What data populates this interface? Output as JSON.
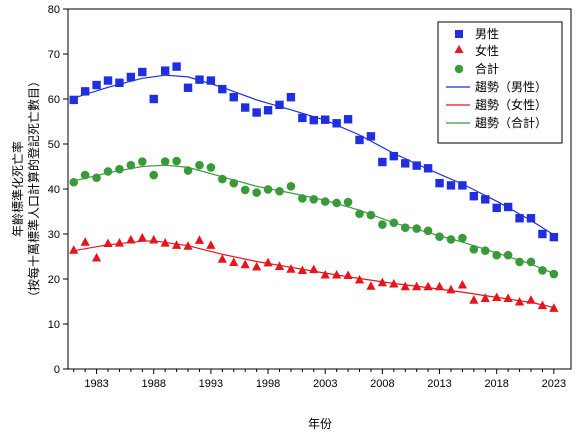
{
  "chart_data": {
    "type": "scatter",
    "xlabel": "年份",
    "ylabel": "年齡標準化死亡率",
    "ylabel2": "（按每十萬標準人口計算的登記死亡數目）",
    "xlim": [
      1981,
      2023
    ],
    "ylim": [
      0,
      80
    ],
    "x_ticks": [
      "1983",
      "1988",
      "1993",
      "1998",
      "2003",
      "2008",
      "2013",
      "2018",
      "2023"
    ],
    "y_ticks": [
      "0",
      "10",
      "20",
      "30",
      "40",
      "50",
      "60",
      "70",
      "80"
    ],
    "legend_position": "top-right",
    "series": [
      {
        "name": "男性",
        "marker": "square",
        "color": "#1f2fe0",
        "x": [
          1981,
          1982,
          1983,
          1984,
          1985,
          1986,
          1987,
          1988,
          1989,
          1990,
          1991,
          1992,
          1993,
          1994,
          1995,
          1996,
          1997,
          1998,
          1999,
          2000,
          2001,
          2002,
          2003,
          2004,
          2005,
          2006,
          2007,
          2008,
          2009,
          2010,
          2011,
          2012,
          2013,
          2014,
          2015,
          2016,
          2017,
          2018,
          2019,
          2020,
          2021,
          2022,
          2023
        ],
        "y": [
          59.8,
          61.7,
          63.1,
          64.1,
          63.6,
          64.9,
          66.0,
          60.0,
          66.3,
          67.2,
          62.5,
          64.3,
          64.1,
          62.2,
          60.4,
          58.1,
          57.0,
          57.5,
          58.7,
          60.4,
          55.8,
          55.3,
          55.4,
          54.6,
          55.5,
          50.9,
          51.7,
          46.0,
          47.3,
          45.7,
          45.2,
          44.6,
          41.3,
          40.8,
          40.8,
          38.4,
          37.7,
          35.8,
          36.0,
          33.5,
          33.5,
          30.0,
          29.3
        ]
      },
      {
        "name": "女性",
        "marker": "triangle",
        "color": "#e8141c",
        "x": [
          1981,
          1982,
          1983,
          1984,
          1985,
          1986,
          1987,
          1988,
          1989,
          1990,
          1991,
          1992,
          1993,
          1994,
          1995,
          1996,
          1997,
          1998,
          1999,
          2000,
          2001,
          2002,
          2003,
          2004,
          2005,
          2006,
          2007,
          2008,
          2009,
          2010,
          2011,
          2012,
          2013,
          2014,
          2015,
          2016,
          2017,
          2018,
          2019,
          2020,
          2021,
          2022,
          2023
        ],
        "y": [
          26.4,
          28.2,
          24.7,
          27.9,
          28.0,
          28.7,
          29.1,
          28.7,
          28.0,
          27.5,
          27.3,
          28.6,
          27.5,
          24.4,
          23.7,
          23.2,
          22.7,
          23.6,
          22.8,
          22.2,
          21.9,
          22.1,
          20.9,
          20.9,
          20.8,
          19.8,
          18.4,
          19.2,
          18.9,
          18.3,
          18.3,
          18.3,
          18.3,
          17.6,
          18.7,
          15.3,
          15.7,
          15.9,
          15.7,
          14.9,
          15.3,
          14.1,
          13.5
        ]
      },
      {
        "name": "合計",
        "marker": "circle",
        "color": "#3a9a3a",
        "x": [
          1981,
          1982,
          1983,
          1984,
          1985,
          1986,
          1987,
          1988,
          1989,
          1990,
          1991,
          1992,
          1993,
          1994,
          1995,
          1996,
          1997,
          1998,
          1999,
          2000,
          2001,
          2002,
          2003,
          2004,
          2005,
          2006,
          2007,
          2008,
          2009,
          2010,
          2011,
          2012,
          2013,
          2014,
          2015,
          2016,
          2017,
          2018,
          2019,
          2020,
          2021,
          2022,
          2023
        ],
        "y": [
          41.5,
          43.1,
          42.5,
          43.9,
          44.4,
          45.3,
          46.1,
          43.1,
          46.1,
          46.2,
          44.1,
          45.3,
          44.8,
          42.2,
          41.3,
          39.8,
          39.2,
          39.9,
          39.5,
          40.6,
          37.9,
          37.7,
          37.2,
          36.9,
          37.1,
          34.5,
          34.2,
          32.1,
          32.5,
          31.4,
          31.2,
          30.7,
          29.4,
          28.8,
          29.1,
          26.6,
          26.3,
          25.3,
          25.3,
          23.8,
          23.8,
          21.9,
          21.1
        ]
      }
    ],
    "trends": [
      {
        "name": "趨勢（男性）",
        "color": "#1f2fe0",
        "x": [
          1981,
          1984,
          1987,
          1989,
          1991,
          1994,
          1997,
          2000,
          2003,
          2006,
          2009,
          2012,
          2015,
          2018,
          2021,
          2023
        ],
        "y": [
          60.2,
          62.6,
          64.6,
          65.3,
          64.9,
          62.6,
          59.8,
          57.6,
          55.3,
          52.0,
          47.9,
          44.4,
          41.1,
          37.3,
          33.0,
          29.8
        ]
      },
      {
        "name": "趨勢（女性）",
        "color": "#e8141c",
        "x": [
          1981,
          1984,
          1987,
          1988,
          1991,
          1994,
          1997,
          2000,
          2003,
          2006,
          2009,
          2012,
          2015,
          2018,
          2021,
          2023
        ],
        "y": [
          26.3,
          27.6,
          28.4,
          28.5,
          27.4,
          25.5,
          23.9,
          22.6,
          21.3,
          20.1,
          19.0,
          18.1,
          17.1,
          15.9,
          14.8,
          13.7
        ]
      },
      {
        "name": "趨勢（合計）",
        "color": "#3a9a3a",
        "x": [
          1981,
          1984,
          1987,
          1989,
          1991,
          1994,
          1997,
          2000,
          2003,
          2006,
          2009,
          2012,
          2015,
          2018,
          2021,
          2023
        ],
        "y": [
          41.8,
          43.6,
          45.0,
          45.3,
          44.8,
          42.7,
          40.6,
          39.1,
          37.5,
          35.3,
          32.5,
          30.3,
          28.2,
          25.8,
          23.3,
          21.2
        ]
      }
    ]
  }
}
